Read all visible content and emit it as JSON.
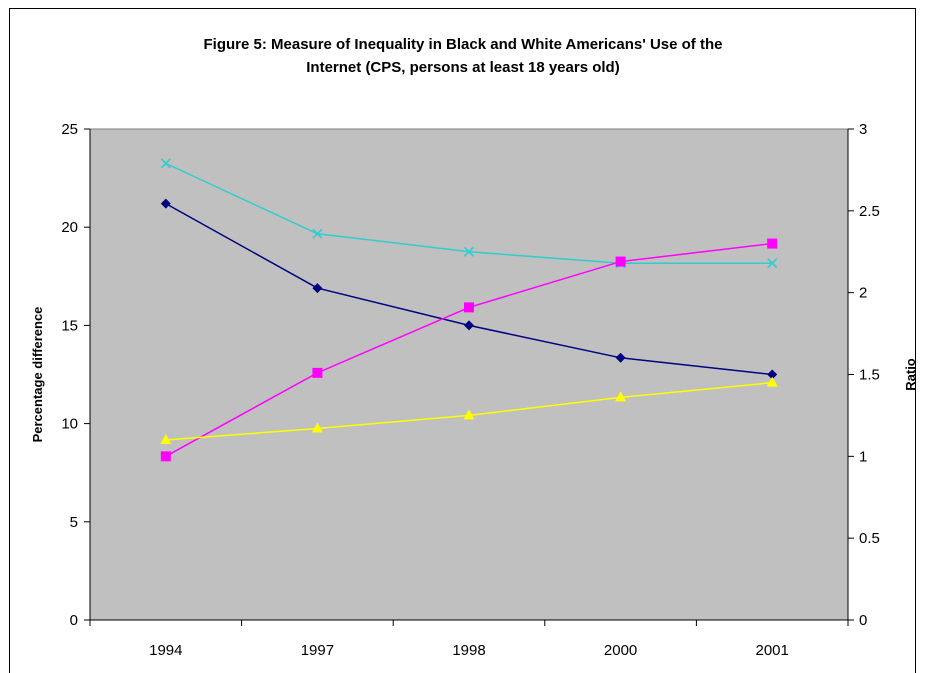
{
  "chart_data": {
    "type": "line",
    "title_line1": "Figure 5: Measure of Inequality in Black and White Americans' Use of the",
    "title_line2": "Internet (CPS, persons at least 18 years old)",
    "categories": [
      "1994",
      "1997",
      "1998",
      "2000",
      "2001"
    ],
    "ylabel_left": "Percentage difference",
    "ylabel_right": "Ratio",
    "ylim_left": [
      0,
      25
    ],
    "ylim_right": [
      0,
      3
    ],
    "yticks_left": [
      "0",
      "5",
      "10",
      "15",
      "20",
      "25"
    ],
    "yticks_right": [
      "0",
      "0.5",
      "1",
      "1.5",
      "2",
      "2.5",
      "3"
    ],
    "grid": false,
    "plot_background": "#c0c0c0",
    "series": [
      {
        "axis": "left",
        "values": [
          21.2,
          16.9,
          15.0,
          13.35,
          12.5
        ],
        "color": "#000080",
        "marker": "diamond"
      },
      {
        "axis": "right",
        "values": [
          2.79,
          2.36,
          2.25,
          2.18,
          2.18
        ],
        "color": "#33cccc",
        "marker": "x"
      },
      {
        "axis": "right",
        "values": [
          1.0,
          1.51,
          1.91,
          2.19,
          2.3
        ],
        "color": "#ff00ff",
        "marker": "square"
      },
      {
        "axis": "right",
        "values": [
          1.1,
          1.17,
          1.25,
          1.36,
          1.45
        ],
        "color": "#ffff00",
        "marker": "triangle"
      }
    ]
  }
}
